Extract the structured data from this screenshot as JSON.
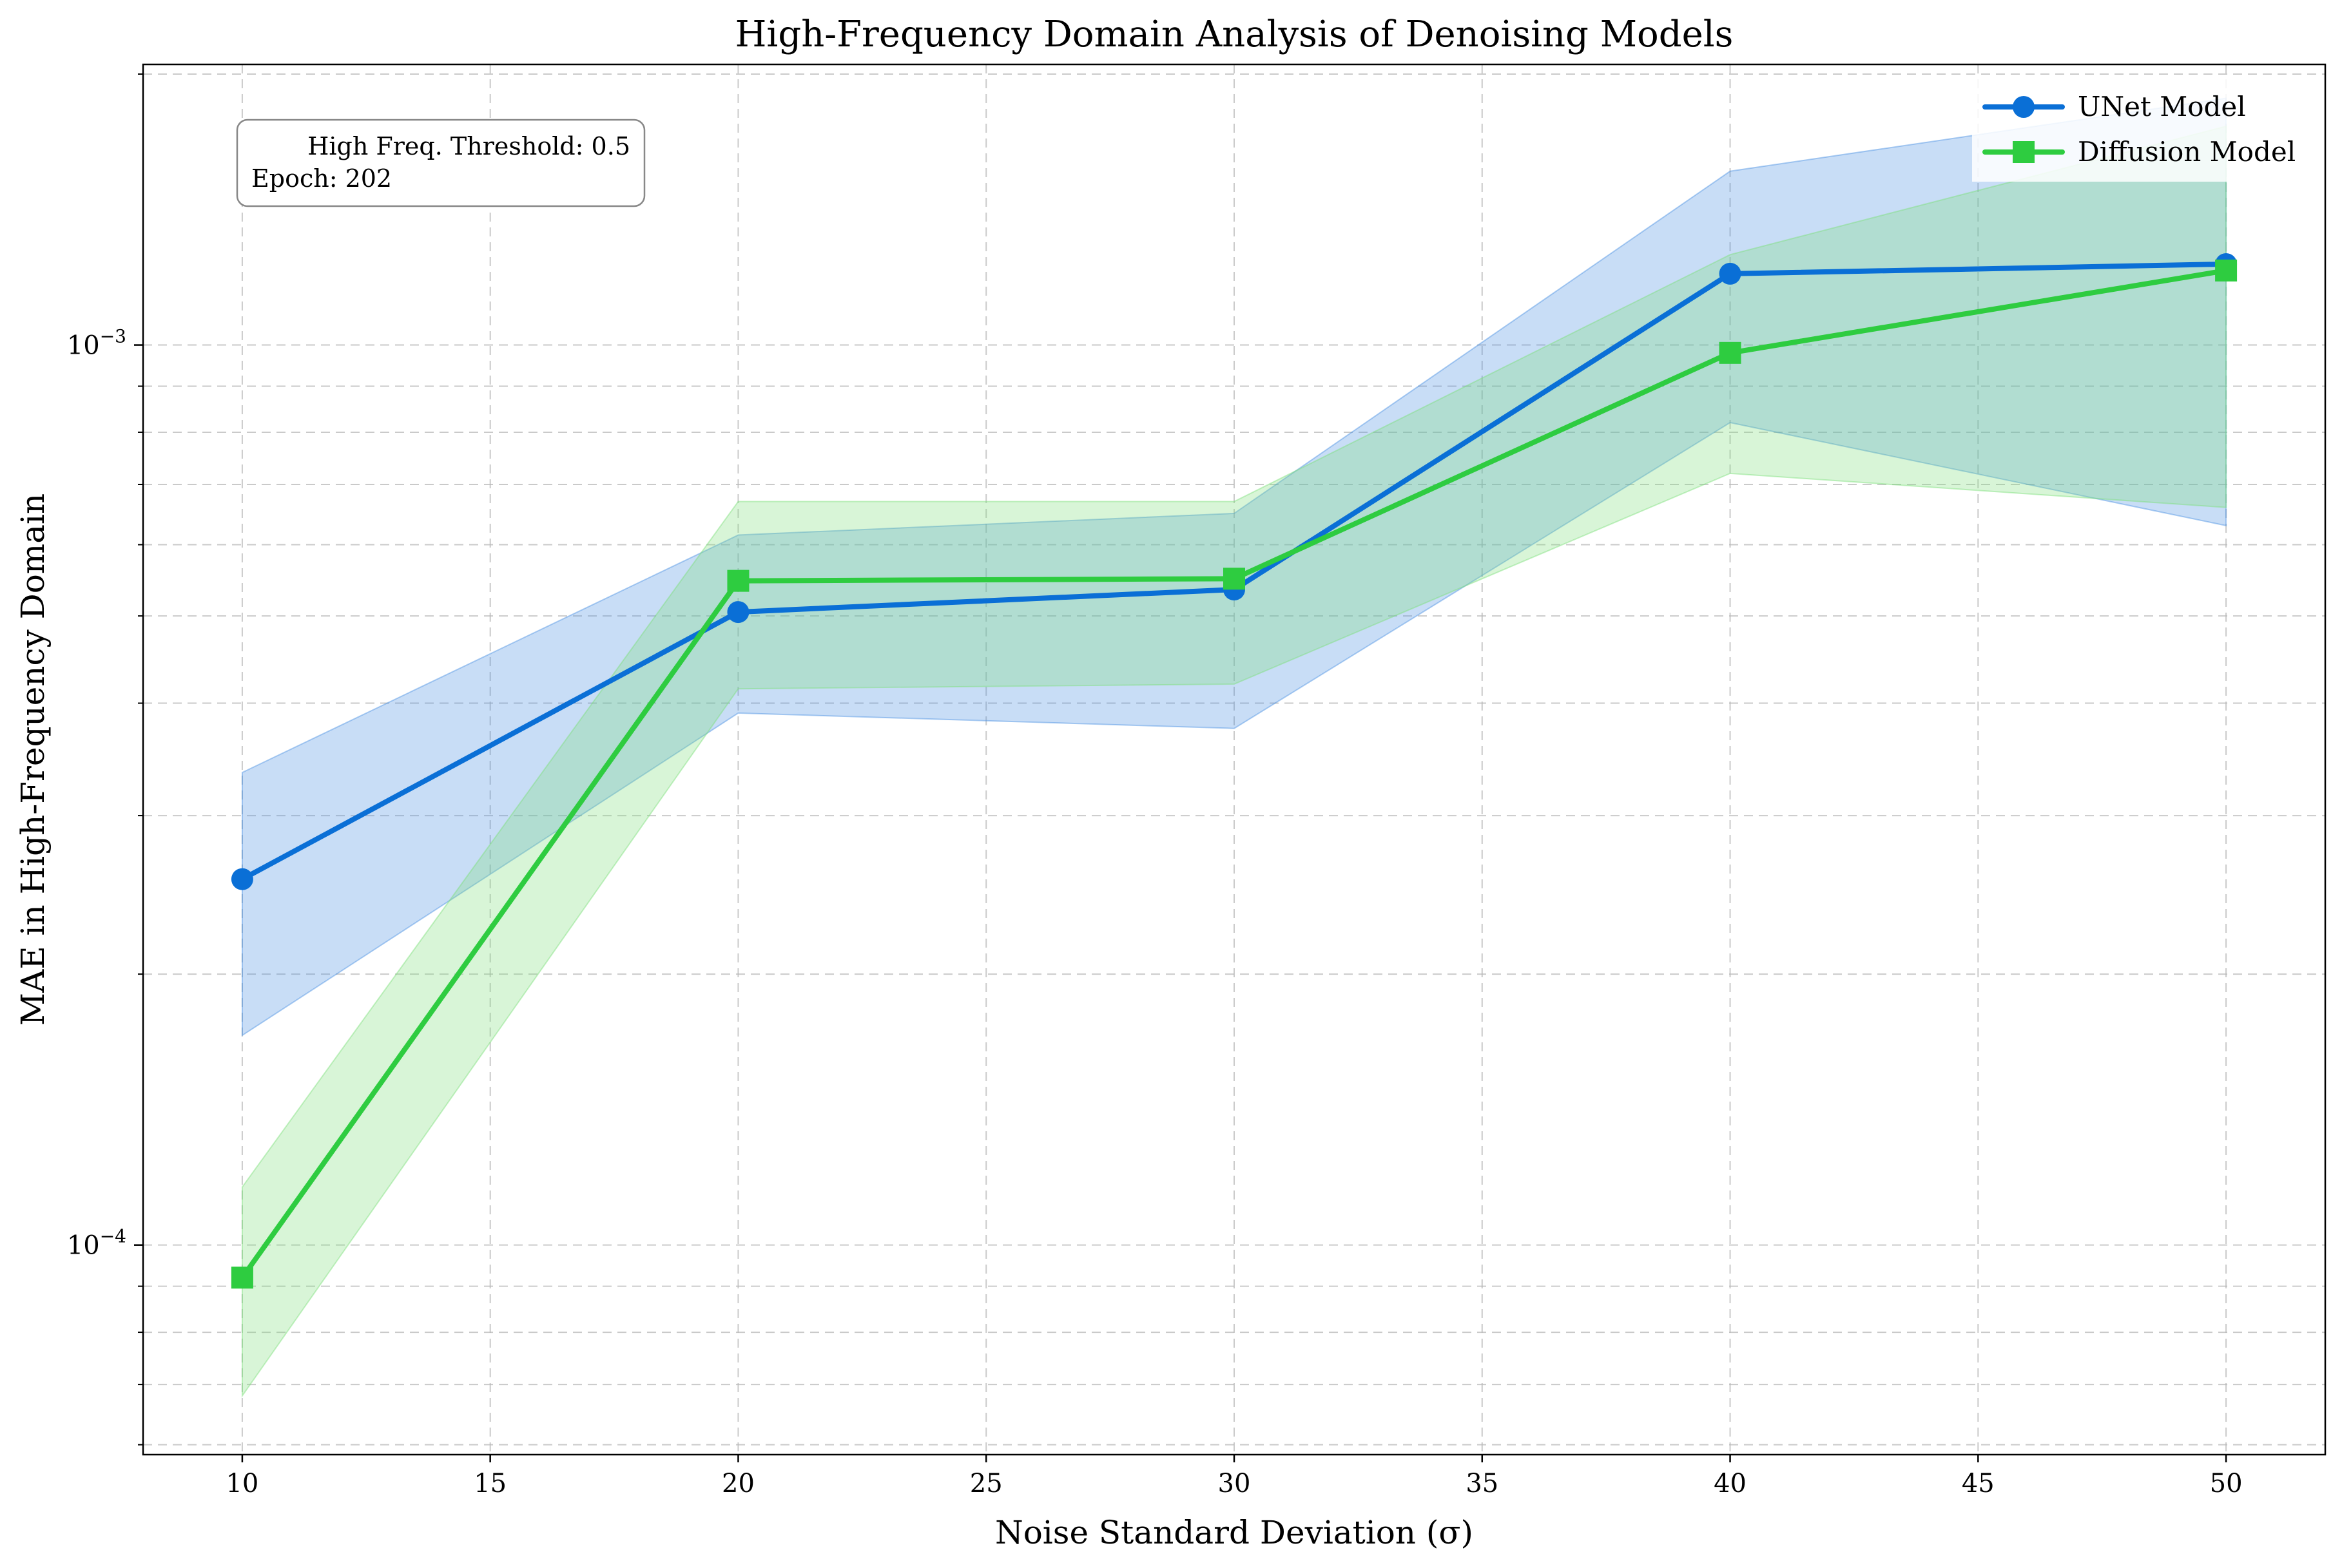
{
  "chart_data": {
    "type": "line",
    "title": "High-Frequency Domain Analysis of Denoising Models",
    "xlabel": "Noise Standard Deviation (σ)",
    "ylabel": "MAE in High-Frequency Domain",
    "x": [
      10,
      20,
      30,
      40,
      50
    ],
    "xlim": [
      8,
      52
    ],
    "ylim": [
      5.85e-05,
      0.00205
    ],
    "yscale": "log",
    "xticks": [
      10,
      15,
      20,
      25,
      30,
      35,
      40,
      45,
      50
    ],
    "yticks": [
      {
        "value": 0.0001,
        "label": "10^{-4}"
      },
      {
        "value": 0.001,
        "label": "10^{-3}"
      }
    ],
    "grid": true,
    "legend_position": "top-right",
    "series": [
      {
        "name": "UNet Model",
        "color": "#0a6fd6",
        "band_color": "#4a90e2",
        "marker": "circle",
        "values": [
          0.000255,
          0.000505,
          0.000535,
          0.0012,
          0.00123
        ],
        "lower": [
          0.000171,
          0.00039,
          0.000375,
          0.00082,
          0.00063
        ],
        "upper": [
          0.000335,
          0.000615,
          0.00065,
          0.00156,
          0.00188
        ]
      },
      {
        "name": "Diffusion Model",
        "color": "#2ecc40",
        "band_color": "#7ddf7a",
        "marker": "square",
        "values": [
          9.2e-05,
          0.000547,
          0.00055,
          0.00098,
          0.00121
        ],
        "lower": [
          6.8e-05,
          0.000415,
          0.00042,
          0.00072,
          0.00066
        ],
        "upper": [
          0.000116,
          0.00067,
          0.00067,
          0.00126,
          0.00175
        ]
      }
    ],
    "annotation": {
      "line1": "High Freq. Threshold: 0.5",
      "line2": "Epoch: 202"
    }
  }
}
